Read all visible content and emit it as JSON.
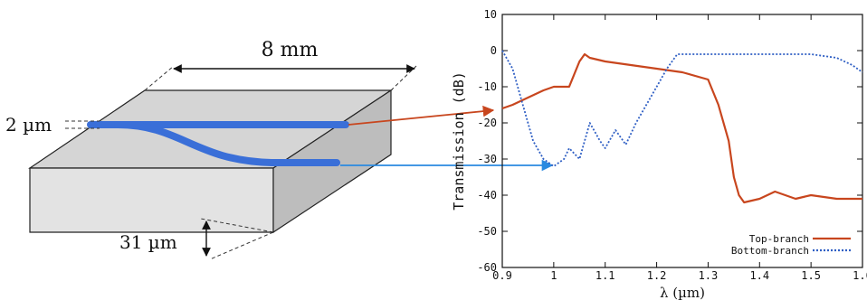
{
  "diagram": {
    "length_label": "8 mm",
    "width_label": "2 µm",
    "thickness_label": "31 µm"
  },
  "colors": {
    "waveguide": "#3a6fd8",
    "top_branch": "#c8461e",
    "bottom_branch": "#2f5fc4",
    "arrow_top": "#c8461e",
    "arrow_bottom": "#2a8ae0"
  },
  "chart_data": {
    "type": "line",
    "title": "",
    "xlabel": "λ (µm)",
    "ylabel": "Transmission (dB)",
    "xlim": [
      0.9,
      1.6
    ],
    "ylim": [
      -60,
      10
    ],
    "x_ticks": [
      "0.9",
      "1",
      "1.1",
      "1.2",
      "1.3",
      "1.4",
      "1.5",
      "1.6"
    ],
    "y_ticks": [
      "10",
      "0",
      "-10",
      "-20",
      "-30",
      "-40",
      "-50",
      "-60"
    ],
    "grid": false,
    "legend_position": "bottom-right",
    "series": [
      {
        "name": "Top-branch",
        "style": "solid",
        "color": "#c8461e",
        "x": [
          0.9,
          0.92,
          0.95,
          0.98,
          1.0,
          1.03,
          1.05,
          1.06,
          1.07,
          1.1,
          1.15,
          1.2,
          1.25,
          1.3,
          1.32,
          1.34,
          1.35,
          1.36,
          1.37,
          1.4,
          1.43,
          1.47,
          1.5,
          1.55,
          1.6
        ],
        "y": [
          -16,
          -15,
          -13,
          -11,
          -10,
          -10,
          -3,
          -1,
          -2,
          -3,
          -4,
          -5,
          -6,
          -8,
          -15,
          -25,
          -35,
          -40,
          -42,
          -41,
          -39,
          -41,
          -40,
          -41,
          -41
        ]
      },
      {
        "name": "Bottom-branch",
        "style": "dotted",
        "color": "#2f5fc4",
        "x": [
          0.9,
          0.92,
          0.94,
          0.96,
          0.98,
          1.0,
          1.02,
          1.03,
          1.05,
          1.07,
          1.09,
          1.1,
          1.12,
          1.14,
          1.16,
          1.18,
          1.2,
          1.22,
          1.24,
          1.3,
          1.4,
          1.5,
          1.55,
          1.58,
          1.6
        ],
        "y": [
          0,
          -5,
          -15,
          -25,
          -30,
          -32,
          -30,
          -27,
          -30,
          -20,
          -25,
          -27,
          -22,
          -26,
          -20,
          -15,
          -10,
          -5,
          -1,
          -1,
          -1,
          -1,
          -2,
          -4,
          -6
        ]
      }
    ]
  }
}
